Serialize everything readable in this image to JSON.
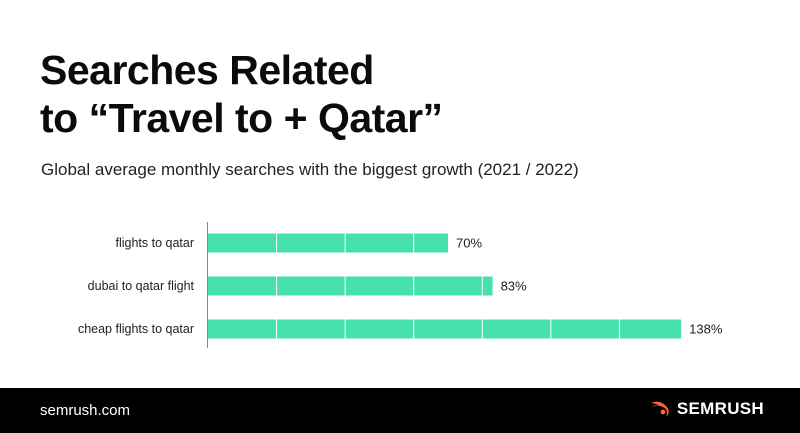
{
  "header": {
    "title_line1": "Searches Related",
    "title_line2": "to “Travel to + Qatar”",
    "subtitle": "Global average monthly searches with the biggest growth (2021 / 2022)"
  },
  "chart_data": {
    "type": "bar",
    "orientation": "horizontal",
    "title": "",
    "categories": [
      "flights to qatar",
      "dubai to qatar flight",
      "cheap flights to qatar"
    ],
    "values": [
      70,
      83,
      138
    ],
    "value_labels": [
      "70%",
      "83%",
      "138%"
    ],
    "unit": "%",
    "xlim": [
      0,
      140
    ],
    "bar_color": "#46e0aa",
    "gridlines": true
  },
  "footer": {
    "site": "semrush.com",
    "brand": "SEMRUSH",
    "brand_icon": "semrush-fire-logo-icon",
    "brand_color": "#ff642d"
  }
}
